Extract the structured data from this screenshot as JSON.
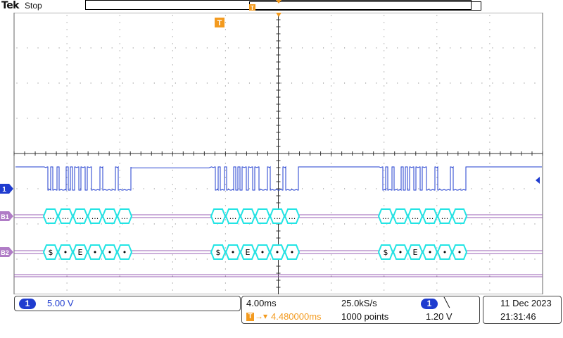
{
  "header": {
    "brand": "Tek",
    "run_state": "Stop"
  },
  "channels": {
    "ch1": {
      "marker": "1",
      "color": "#1f3ccf"
    },
    "bus1": {
      "marker": "B1",
      "color": "#b07cc6",
      "packet_text": "..."
    },
    "bus2": {
      "marker": "B2",
      "color": "#b07cc6",
      "packet_values": [
        "$",
        "•",
        "E",
        "•",
        "•",
        "•"
      ]
    }
  },
  "trigger": {
    "marker": "T",
    "color": "#f39a1e"
  },
  "status": {
    "ch1_badge": "1",
    "ch1_scale": "5.00 V",
    "timebase": "4.00ms",
    "trigger_delay": "4.480000ms",
    "sample_rate": "25.0kS/s",
    "record_length": "1000 points",
    "trigger_source_badge": "1",
    "trigger_slope": "╲",
    "trigger_level": "1.20 V",
    "date": "11 Dec  2023",
    "time": "21:31:46"
  },
  "colors": {
    "waveform": "#1f3ccf",
    "bus_lines": "#9a5fb5",
    "packet_outline": "#22e4e4",
    "grid": "#888888"
  }
}
